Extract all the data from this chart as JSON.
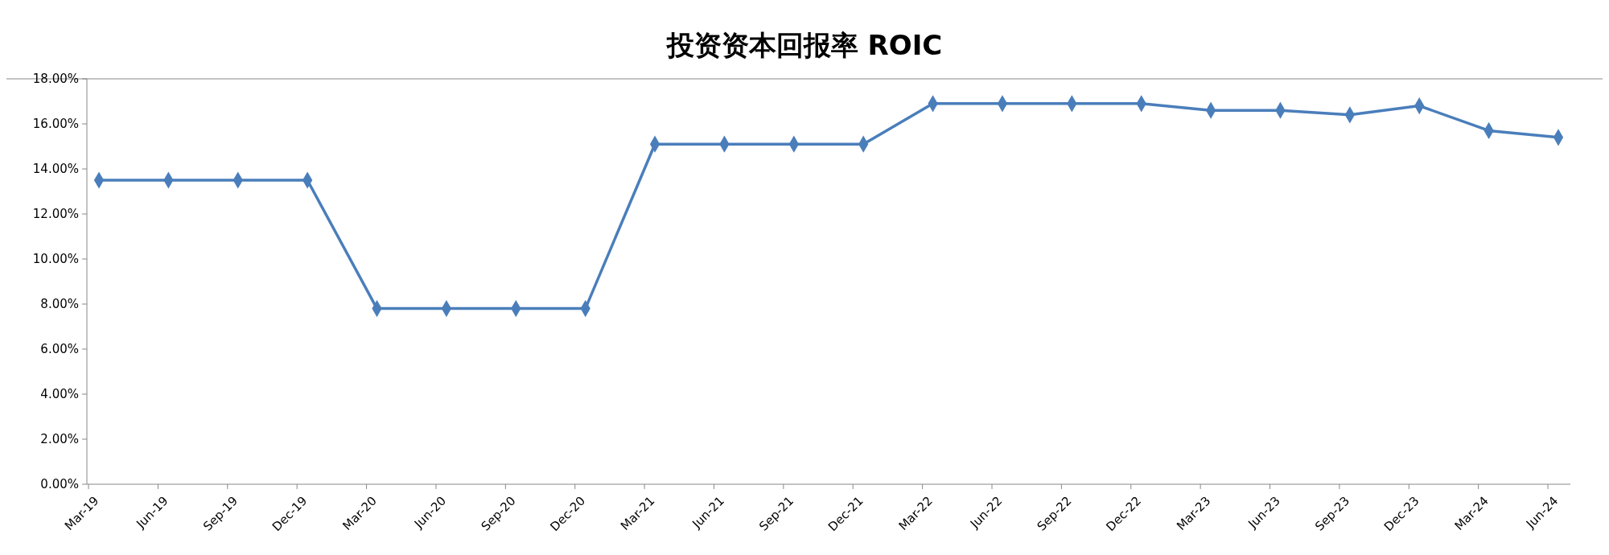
{
  "chart_data": {
    "type": "line",
    "title": "投资资本回报率 ROIC",
    "categories": [
      "Mar-19",
      "Jun-19",
      "Sep-19",
      "Dec-19",
      "Mar-20",
      "Jun-20",
      "Sep-20",
      "Dec-20",
      "Mar-21",
      "Jun-21",
      "Sep-21",
      "Dec-21",
      "Mar-22",
      "Jun-22",
      "Sep-22",
      "Dec-22",
      "Mar-23",
      "Jun-23",
      "Sep-23",
      "Dec-23",
      "Mar-24",
      "Jun-24"
    ],
    "series": [
      {
        "color": "#4a7ebb",
        "values": [
          13.5,
          13.5,
          13.5,
          13.5,
          7.8,
          7.8,
          7.8,
          7.8,
          15.1,
          15.1,
          15.1,
          15.1,
          16.9,
          16.9,
          16.9,
          16.9,
          16.6,
          16.6,
          16.4,
          16.8,
          15.7,
          15.4
        ]
      }
    ],
    "ylim": [
      0,
      18
    ],
    "yticks": [
      {
        "value": 0,
        "label": "0.00%"
      },
      {
        "value": 2,
        "label": "2.00%"
      },
      {
        "value": 4,
        "label": "4.00%"
      },
      {
        "value": 6,
        "label": "6.00%"
      },
      {
        "value": 8,
        "label": "8.00%"
      },
      {
        "value": 10,
        "label": "10.00%"
      },
      {
        "value": 12,
        "label": "12.00%"
      },
      {
        "value": 14,
        "label": "14.00%"
      },
      {
        "value": 16,
        "label": "16.00%"
      },
      {
        "value": 18,
        "label": "18.00%"
      }
    ],
    "marker": "diamond"
  }
}
